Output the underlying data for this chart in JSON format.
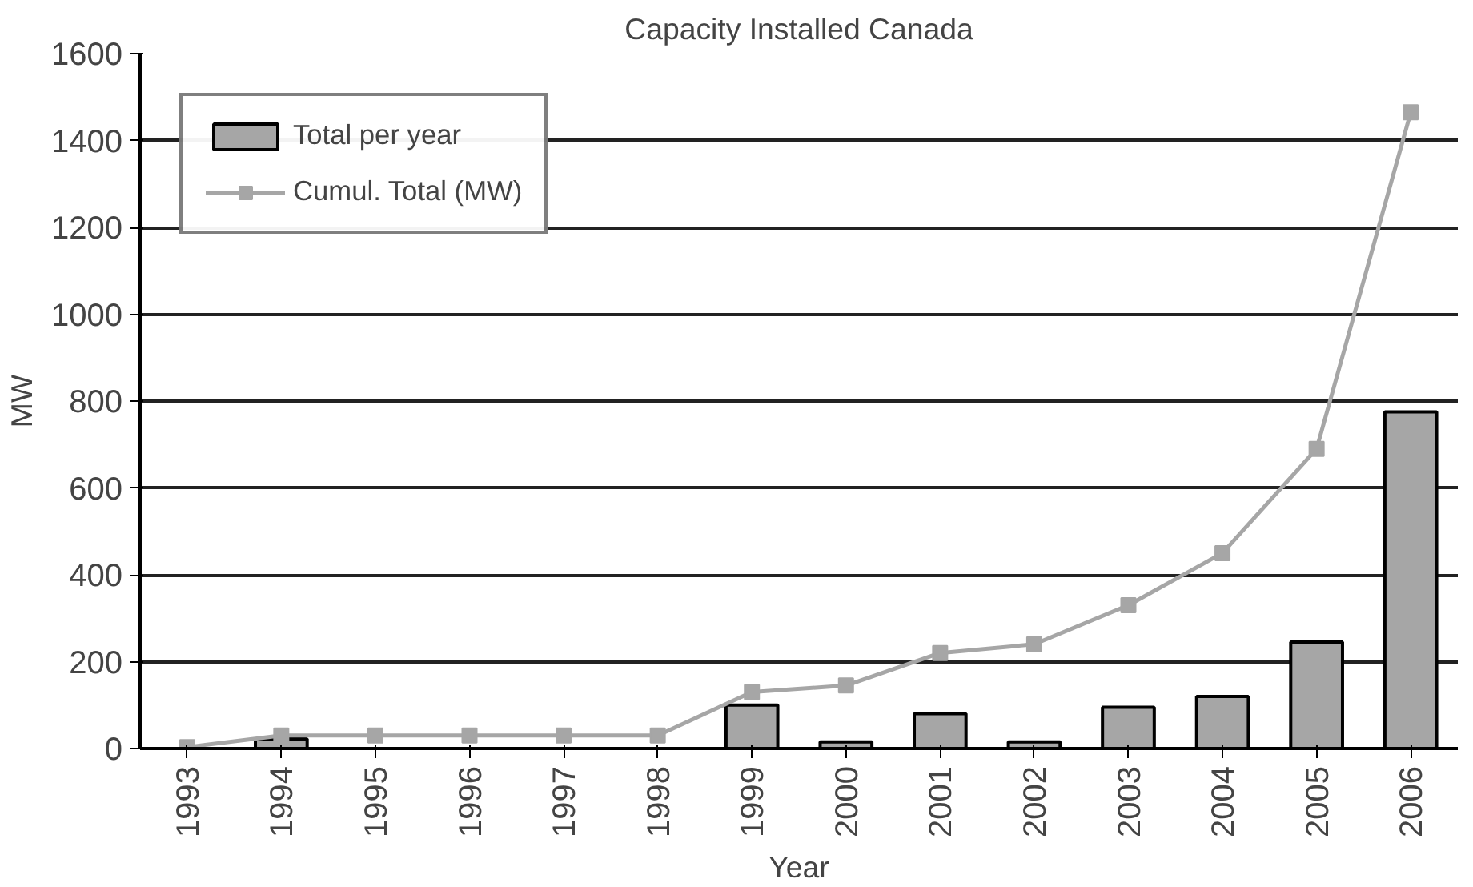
{
  "chart_data": {
    "type": "bar",
    "title": "Capacity Installed Canada",
    "xlabel": "Year",
    "ylabel": "MW",
    "categories": [
      "1993",
      "1994",
      "1995",
      "1996",
      "1997",
      "1998",
      "1999",
      "2000",
      "2001",
      "2002",
      "2003",
      "2004",
      "2005",
      "2006"
    ],
    "series": [
      {
        "name": "Total per year",
        "color": "#a6a6a6",
        "values": [
          null,
          22,
          null,
          null,
          null,
          null,
          100,
          15,
          80,
          15,
          95,
          120,
          245,
          775
        ]
      },
      {
        "name": "Cumul. Total (MW)",
        "type": "line",
        "color": "#a6a6a6",
        "marker": "square",
        "values": [
          3,
          30,
          30,
          30,
          30,
          30,
          130,
          145,
          220,
          240,
          330,
          450,
          690,
          1465
        ]
      }
    ],
    "ylim": [
      0,
      1600
    ],
    "yticks": [
      0,
      200,
      400,
      600,
      800,
      1000,
      1200,
      1400,
      1600
    ],
    "grid": "y",
    "legend": "top left"
  }
}
